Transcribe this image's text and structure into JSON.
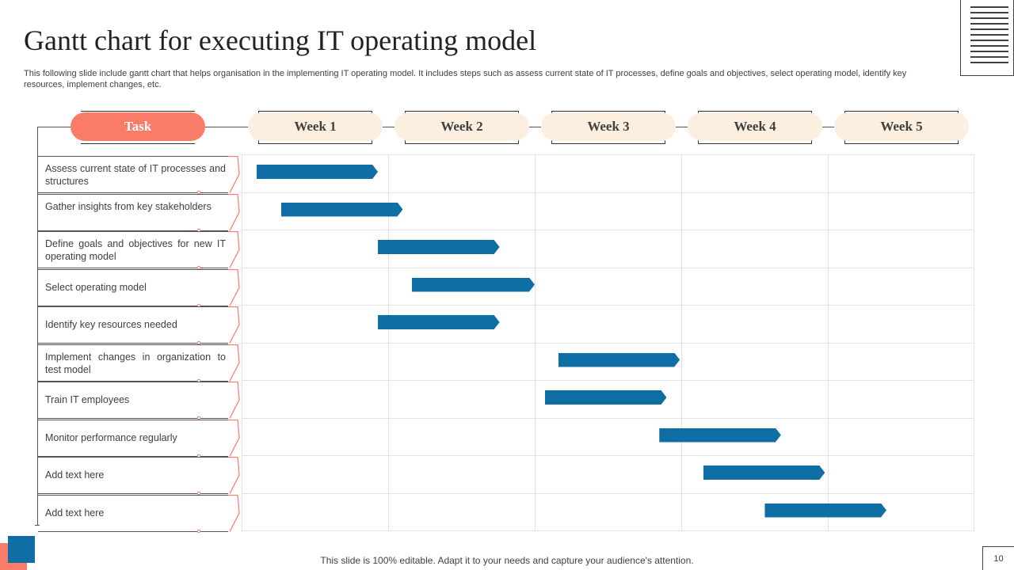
{
  "title": "Gantt chart for executing IT operating model",
  "subtitle": "This following slide include gantt chart that helps organisation in the implementing IT operating model. It includes steps such as assess current state of IT processes, define goals and objectives, select operating model, identify key resources, implement changes, etc.",
  "header": {
    "task_label": "Task",
    "weeks": [
      "Week 1",
      "Week 2",
      "Week 3",
      "Week 4",
      "Week 5"
    ]
  },
  "tasks": [
    {
      "label": "Assess current state of IT processes and structures",
      "start_week": 0.1,
      "end_week": 0.93
    },
    {
      "label": "Gather insights from key stakeholders",
      "start_week": 0.27,
      "end_week": 1.1
    },
    {
      "label": "Define goals and objectives for new IT operating model",
      "start_week": 0.93,
      "end_week": 1.76
    },
    {
      "label": "Select operating model",
      "start_week": 1.16,
      "end_week": 2.0
    },
    {
      "label": "Identify key resources needed",
      "start_week": 0.93,
      "end_week": 1.76
    },
    {
      "label": "Implement changes in organization to test model",
      "start_week": 2.16,
      "end_week": 2.99
    },
    {
      "label": "Train IT employees",
      "start_week": 2.07,
      "end_week": 2.9
    },
    {
      "label": "Monitor performance regularly",
      "start_week": 2.85,
      "end_week": 3.68
    },
    {
      "label": "Add text here",
      "start_week": 3.15,
      "end_week": 3.98
    },
    {
      "label": "Add text here",
      "start_week": 3.57,
      "end_week": 4.4
    }
  ],
  "colors": {
    "accent": "#fa7b67",
    "bar": "#0f6ea3",
    "week_pill": "#fcefe0"
  },
  "footer": {
    "note": "This slide is 100% editable. Adapt it to your needs and capture your audience's attention.",
    "page_number": "10"
  }
}
